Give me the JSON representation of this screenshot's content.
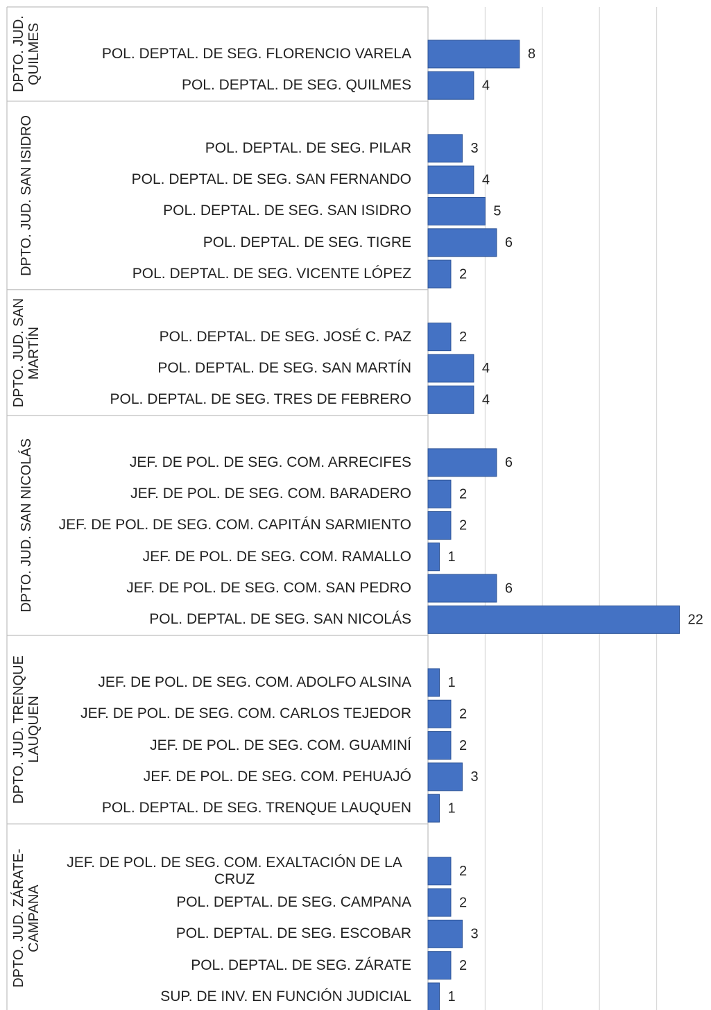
{
  "chart_data": {
    "type": "bar",
    "orientation": "horizontal",
    "color": "#4472c4",
    "xlim": [
      0,
      25
    ],
    "xticks": [
      0,
      5,
      10,
      15,
      20
    ],
    "grid": true,
    "groups": [
      {
        "name": "DPTO. JUD. QUILMES",
        "categories": [
          "POL. DEPTAL. DE SEG. FLORENCIO VARELA",
          "POL. DEPTAL. DE SEG. QUILMES"
        ],
        "values": [
          8,
          4
        ]
      },
      {
        "name": "DPTO. JUD. SAN ISIDRO",
        "categories": [
          "POL. DEPTAL. DE SEG. PILAR",
          "POL. DEPTAL. DE SEG. SAN FERNANDO",
          "POL. DEPTAL. DE SEG. SAN ISIDRO",
          "POL. DEPTAL. DE SEG. TIGRE",
          "POL. DEPTAL. DE SEG. VICENTE LÓPEZ"
        ],
        "values": [
          3,
          4,
          5,
          6,
          2
        ]
      },
      {
        "name": "DPTO. JUD. SAN MARTÍN",
        "categories": [
          "POL. DEPTAL. DE SEG. JOSÉ C. PAZ",
          "POL. DEPTAL. DE SEG. SAN MARTÍN",
          "POL. DEPTAL. DE SEG. TRES DE FEBRERO"
        ],
        "values": [
          2,
          4,
          4
        ]
      },
      {
        "name": "DPTO. JUD. SAN NICOLÁS",
        "categories": [
          "JEF. DE POL. DE SEG. COM. ARRECIFES",
          "JEF. DE POL. DE SEG. COM. BARADERO",
          "JEF. DE POL. DE SEG. COM. CAPITÁN SARMIENTO",
          "JEF. DE POL. DE SEG. COM. RAMALLO",
          "JEF. DE POL. DE SEG. COM. SAN PEDRO",
          "POL. DEPTAL. DE SEG. SAN NICOLÁS"
        ],
        "values": [
          6,
          2,
          2,
          1,
          6,
          22
        ]
      },
      {
        "name": "DPTO. JUD. TRENQUE LAUQUEN",
        "categories": [
          "JEF. DE POL. DE SEG. COM. ADOLFO ALSINA",
          "JEF. DE POL. DE SEG. COM. CARLOS TEJEDOR",
          "JEF. DE POL. DE SEG. COM. GUAMINÍ",
          "JEF. DE POL. DE SEG. COM. PEHUAJÓ",
          "POL. DEPTAL. DE SEG. TRENQUE LAUQUEN"
        ],
        "values": [
          1,
          2,
          2,
          3,
          1
        ]
      },
      {
        "name": "DPTO. JUD. ZÁRATE-CAMPANA",
        "categories": [
          "JEF. DE POL. DE SEG. COM. EXALTACIÓN DE LA CRUZ",
          "POL. DEPTAL. DE SEG. CAMPANA",
          "POL. DEPTAL. DE SEG. ESCOBAR",
          "POL. DEPTAL. DE SEG. ZÁRATE",
          "SUP. DE INV. EN FUNCIÓN JUDICIAL"
        ],
        "values": [
          2,
          2,
          3,
          2,
          1
        ]
      }
    ]
  }
}
